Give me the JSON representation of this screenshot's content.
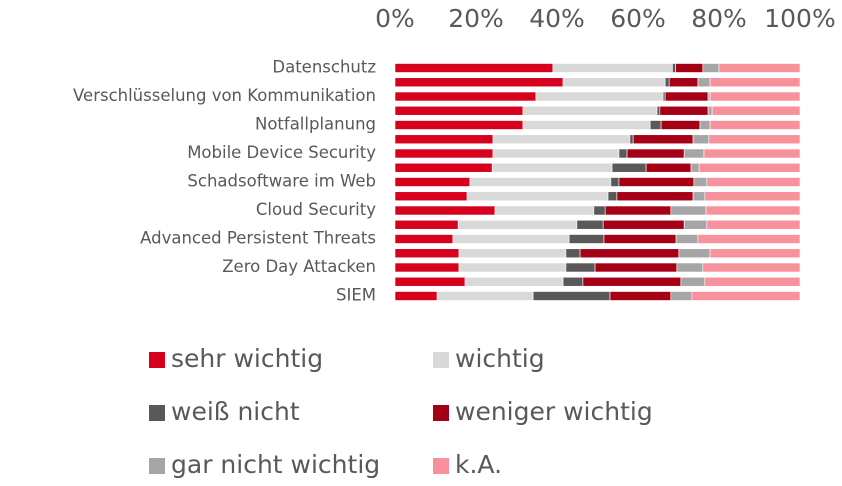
{
  "chart_data": {
    "type": "stacked_bar_horizontal",
    "categories": [
      "Datenschutz",
      null,
      "Verschlüsselung von Kommunikation",
      null,
      "Notfallplanung",
      null,
      "Mobile Device Security",
      null,
      "Schadsoftware im Web",
      null,
      "Cloud Security",
      null,
      "Advanced Persistent Threats",
      null,
      "Zero Day Attacken",
      null,
      "SIEM"
    ],
    "xlim": [
      0,
      100
    ],
    "xticks": [
      {
        "value": 0,
        "label": "0%"
      },
      {
        "value": 20,
        "label": "20%"
      },
      {
        "value": 40,
        "label": "40%"
      },
      {
        "value": 60,
        "label": "60%"
      },
      {
        "value": 80,
        "label": "80%"
      },
      {
        "value": 100,
        "label": "100%"
      }
    ],
    "series": [
      {
        "name": "sehr wichtig",
        "color": "#d7001d",
        "values": [
          39,
          41.5,
          34.8,
          31.6,
          31.6,
          24.2,
          24.2,
          24,
          18.5,
          17.8,
          24.7,
          15.6,
          14.3,
          15.8,
          15.8,
          17.3,
          10.4
        ]
      },
      {
        "name": "wichtig",
        "color": "#d9d9d9",
        "values": [
          29.5,
          25.2,
          31.4,
          33.1,
          31.4,
          33.8,
          31.1,
          29.6,
          34.8,
          34.8,
          24.4,
          29.3,
          28.7,
          26.4,
          26.4,
          24.2,
          23.7
        ]
      },
      {
        "name": "weiß nicht",
        "color": "#595959",
        "values": [
          0.8,
          1,
          0.5,
          0.7,
          2.7,
          0.8,
          2,
          8.4,
          2,
          2.2,
          2.8,
          6.5,
          8.6,
          3.5,
          7.2,
          4.9,
          19
        ]
      },
      {
        "name": "weniger wichtig",
        "color": "#a50016",
        "values": [
          6.7,
          7.1,
          10.6,
          11.9,
          9.6,
          14.8,
          14.1,
          11.1,
          18.5,
          18.8,
          16.2,
          20,
          17.8,
          24.4,
          20.2,
          24.2,
          15
        ]
      },
      {
        "name": "gar nicht wichtig",
        "color": "#a6a6a6",
        "values": [
          4,
          3,
          0.5,
          1,
          2.5,
          3.9,
          4.9,
          2,
          3.2,
          2.9,
          8.7,
          5.6,
          5.4,
          7.7,
          6.4,
          5.9,
          5.2
        ]
      },
      {
        "name": "k.A.",
        "color": "#f7919c",
        "values": [
          20,
          22.2,
          22.2,
          21.7,
          22.2,
          22.5,
          23.7,
          24.9,
          23,
          23.5,
          23.2,
          23,
          25.2,
          22.2,
          24,
          23.5,
          26.7
        ]
      }
    ]
  }
}
